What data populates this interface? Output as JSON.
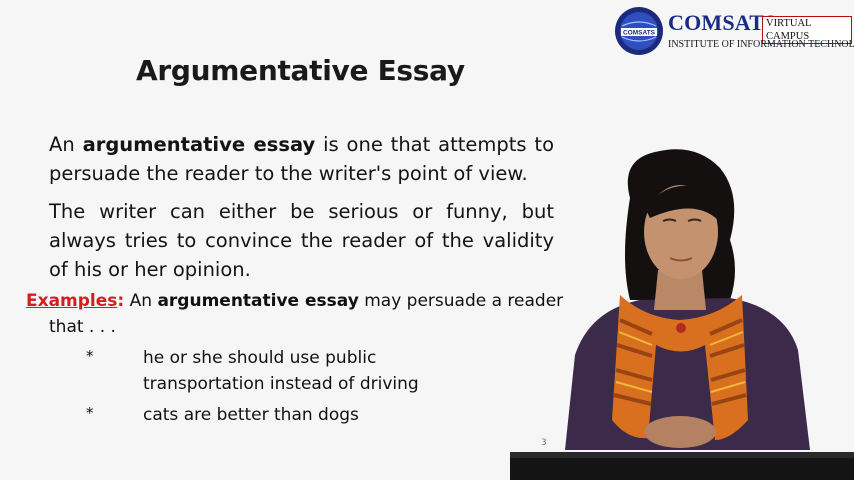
{
  "logo": {
    "name": "COMSATS",
    "badge": "VIRTUAL CAMPUS",
    "subtitle": "INSTITUTE OF INFORMATION TECHNOLOGY",
    "seal_text": "COMSATS"
  },
  "slide": {
    "title": "Argumentative Essay",
    "p1": {
      "pre": "An ",
      "bold": "argumentative essay",
      "post": " is one that attempts to persuade the reader to the writer's point of view."
    },
    "p2": "The writer can either be serious or funny, but always tries to convince the reader of the validity of his or her opinion.",
    "examples": {
      "label": "Examples",
      "colon": ":",
      "pre": " An ",
      "bold": "argumentative essay",
      "post": " may persuade a reader",
      "cont": "that . . ."
    },
    "bullets": [
      {
        "marker": "*",
        "line1": "he or she should use public",
        "line2": "transportation instead of driving"
      },
      {
        "marker": "*",
        "line1": "cats are better than dogs",
        "line2": ""
      }
    ],
    "page_number": "3"
  },
  "colors": {
    "accent_red": "#d21e1e",
    "logo_blue": "#1a2a8a",
    "scarf_orange": "#d9701f"
  }
}
